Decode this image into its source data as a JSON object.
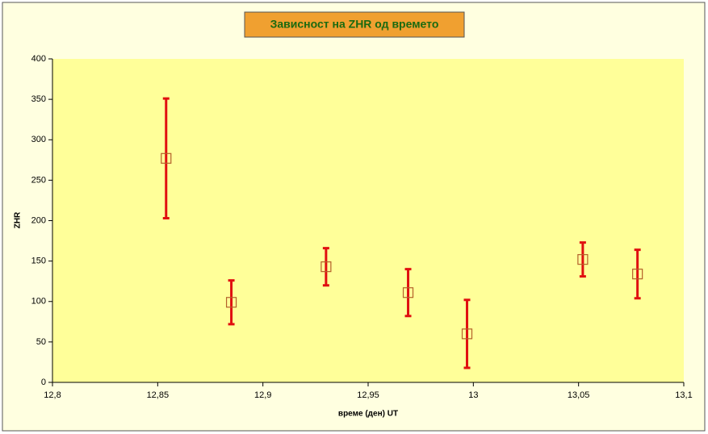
{
  "chart_data": {
    "type": "scatter",
    "title": "Зависност на ZHR од времето",
    "x_label": "време (ден) UT",
    "y_label": "ZHR",
    "x": [
      12.854,
      12.885,
      12.93,
      12.969,
      12.997,
      13.052,
      13.078
    ],
    "values": [
      277,
      99,
      143,
      111,
      60,
      152,
      134
    ],
    "errors": [
      74,
      27,
      23,
      29,
      42,
      21,
      30
    ],
    "marker_color": "#b4602a",
    "error_color": "#e01010",
    "xlim": [
      12.8,
      13.1
    ],
    "xticks": [
      {
        "value": 12.8,
        "label": "12,8"
      },
      {
        "value": 12.85,
        "label": "12,85"
      },
      {
        "value": 12.9,
        "label": "12,9"
      },
      {
        "value": 12.95,
        "label": "12,95"
      },
      13,
      {
        "value": 13.05,
        "label": "13,05"
      },
      {
        "value": 13.1,
        "label": "13,1"
      }
    ],
    "ylim": [
      0,
      400
    ],
    "yticks": [
      0,
      50,
      100,
      150,
      200,
      250,
      300,
      350,
      400
    ]
  }
}
